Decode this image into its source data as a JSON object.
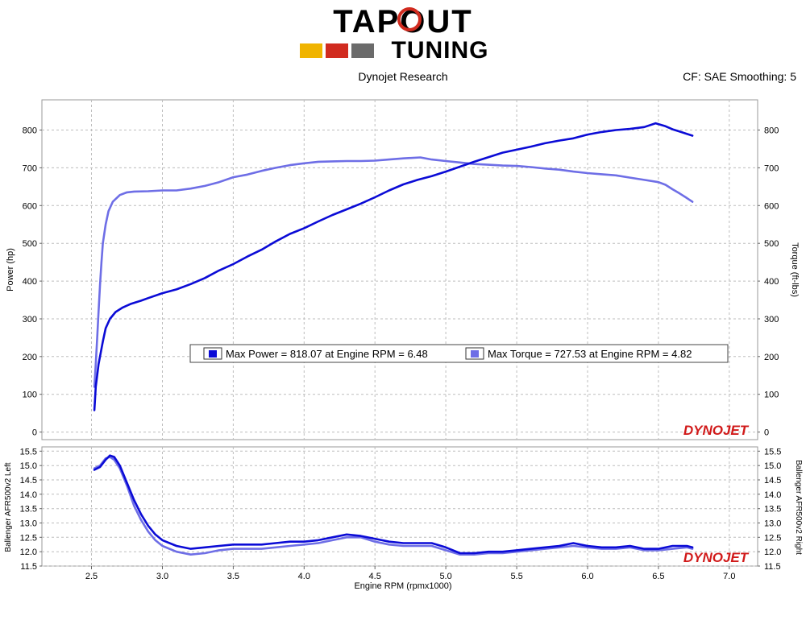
{
  "header": {
    "logo_line1": "TAPOUT",
    "logo_line2": "TUNING",
    "logo_colors": [
      "#f0b400",
      "#d12b1f",
      "#6b6b6b"
    ],
    "subtitle": "Dynojet Research",
    "cf_label": "CF: SAE Smoothing: 5"
  },
  "watermark": "DYNOJET",
  "chart_data": [
    {
      "type": "line",
      "grid": true,
      "xlim": [
        2.15,
        7.2
      ],
      "xticks": [
        2.5,
        3.0,
        3.5,
        4.0,
        4.5,
        5.0,
        5.5,
        6.0,
        6.5,
        7.0
      ],
      "ylim": [
        -20,
        880
      ],
      "yticks": [
        0,
        100,
        200,
        300,
        400,
        500,
        600,
        700,
        800
      ],
      "ylabel": "Power (hp)",
      "y2label": "Torque (ft-lbs)",
      "legend": {
        "placement": "center-right",
        "entries": [
          {
            "text": "Max Power = 818.07 at Engine RPM = 6.48",
            "color": "#0b0bd6"
          },
          {
            "text": "Max Torque = 727.53 at Engine RPM = 4.82",
            "color": "#6e6ee6"
          }
        ]
      },
      "series": [
        {
          "key": "power",
          "color": "#0b0bd6",
          "x": [
            2.52,
            2.53,
            2.55,
            2.58,
            2.6,
            2.63,
            2.67,
            2.72,
            2.78,
            2.85,
            2.9,
            3.0,
            3.1,
            3.2,
            3.3,
            3.4,
            3.5,
            3.6,
            3.7,
            3.8,
            3.9,
            4.0,
            4.1,
            4.2,
            4.3,
            4.4,
            4.5,
            4.6,
            4.7,
            4.8,
            4.9,
            5.0,
            5.1,
            5.2,
            5.3,
            5.4,
            5.5,
            5.6,
            5.7,
            5.8,
            5.9,
            6.0,
            6.1,
            6.2,
            6.3,
            6.4,
            6.48,
            6.55,
            6.6,
            6.65,
            6.7,
            6.74
          ],
          "y": [
            58,
            120,
            180,
            240,
            275,
            300,
            318,
            330,
            340,
            348,
            355,
            368,
            378,
            392,
            408,
            428,
            445,
            465,
            483,
            505,
            525,
            540,
            558,
            575,
            590,
            605,
            622,
            640,
            656,
            668,
            678,
            690,
            703,
            716,
            728,
            740,
            748,
            756,
            765,
            772,
            778,
            788,
            795,
            800,
            803,
            808,
            818,
            810,
            802,
            796,
            790,
            785
          ]
        },
        {
          "key": "torque",
          "color": "#6e6ee6",
          "x": [
            2.52,
            2.53,
            2.54,
            2.55,
            2.56,
            2.57,
            2.58,
            2.6,
            2.62,
            2.65,
            2.7,
            2.75,
            2.8,
            2.9,
            3.0,
            3.1,
            3.2,
            3.3,
            3.4,
            3.5,
            3.6,
            3.7,
            3.8,
            3.9,
            4.0,
            4.1,
            4.2,
            4.3,
            4.4,
            4.5,
            4.6,
            4.7,
            4.82,
            4.9,
            5.0,
            5.1,
            5.2,
            5.3,
            5.4,
            5.5,
            5.6,
            5.7,
            5.8,
            5.9,
            6.0,
            6.1,
            6.2,
            6.3,
            6.4,
            6.5,
            6.55,
            6.6,
            6.65,
            6.7,
            6.74
          ],
          "y": [
            120,
            180,
            250,
            320,
            390,
            450,
            500,
            550,
            585,
            610,
            628,
            635,
            637,
            638,
            640,
            640,
            645,
            652,
            662,
            675,
            682,
            692,
            700,
            707,
            712,
            716,
            717,
            718,
            718,
            719,
            722,
            725,
            727.5,
            722,
            718,
            714,
            710,
            708,
            706,
            705,
            702,
            698,
            695,
            690,
            686,
            683,
            680,
            674,
            668,
            662,
            655,
            643,
            632,
            620,
            610
          ]
        }
      ]
    },
    {
      "type": "line",
      "grid": true,
      "xlim": [
        2.15,
        7.2
      ],
      "xticks": [
        2.5,
        3.0,
        3.5,
        4.0,
        4.5,
        5.0,
        5.5,
        6.0,
        6.5,
        7.0
      ],
      "xlabel": "Engine RPM (rpmx1000)",
      "ylim": [
        11.5,
        15.65
      ],
      "yticks": [
        11.5,
        12.0,
        12.5,
        13.0,
        13.5,
        14.0,
        14.5,
        15.0,
        15.5
      ],
      "ylabel": "Ballenger AFR500v2 Left",
      "y2label": "Ballenger AFR500v2 Right",
      "series": [
        {
          "key": "afr_left",
          "color": "#0b0bd6",
          "x": [
            2.52,
            2.56,
            2.6,
            2.63,
            2.66,
            2.7,
            2.75,
            2.8,
            2.85,
            2.9,
            2.95,
            3.0,
            3.1,
            3.2,
            3.3,
            3.4,
            3.5,
            3.6,
            3.7,
            3.8,
            3.9,
            4.0,
            4.1,
            4.2,
            4.3,
            4.4,
            4.5,
            4.6,
            4.7,
            4.8,
            4.9,
            5.0,
            5.1,
            5.2,
            5.3,
            5.4,
            5.5,
            5.6,
            5.7,
            5.8,
            5.9,
            6.0,
            6.1,
            6.2,
            6.3,
            6.4,
            6.5,
            6.6,
            6.7,
            6.74
          ],
          "y": [
            14.85,
            14.95,
            15.2,
            15.35,
            15.3,
            15.0,
            14.4,
            13.8,
            13.3,
            12.9,
            12.6,
            12.4,
            12.2,
            12.1,
            12.15,
            12.2,
            12.25,
            12.25,
            12.25,
            12.3,
            12.35,
            12.35,
            12.4,
            12.5,
            12.6,
            12.55,
            12.45,
            12.35,
            12.3,
            12.3,
            12.3,
            12.15,
            11.95,
            11.95,
            12.0,
            12.0,
            12.05,
            12.1,
            12.15,
            12.2,
            12.3,
            12.2,
            12.15,
            12.15,
            12.2,
            12.1,
            12.1,
            12.2,
            12.2,
            12.15
          ]
        },
        {
          "key": "afr_right",
          "color": "#6e6ee6",
          "x": [
            2.52,
            2.56,
            2.6,
            2.63,
            2.66,
            2.7,
            2.75,
            2.8,
            2.85,
            2.9,
            2.95,
            3.0,
            3.1,
            3.2,
            3.3,
            3.4,
            3.5,
            3.6,
            3.7,
            3.8,
            3.9,
            4.0,
            4.1,
            4.2,
            4.3,
            4.4,
            4.5,
            4.6,
            4.7,
            4.8,
            4.9,
            5.0,
            5.1,
            5.2,
            5.3,
            5.4,
            5.5,
            5.6,
            5.7,
            5.8,
            5.9,
            6.0,
            6.1,
            6.2,
            6.3,
            6.4,
            6.5,
            6.6,
            6.7,
            6.74
          ],
          "y": [
            14.9,
            15.0,
            15.25,
            15.3,
            15.2,
            14.9,
            14.3,
            13.6,
            13.1,
            12.7,
            12.4,
            12.2,
            12.0,
            11.9,
            11.95,
            12.05,
            12.1,
            12.1,
            12.1,
            12.15,
            12.2,
            12.25,
            12.3,
            12.4,
            12.5,
            12.5,
            12.35,
            12.25,
            12.2,
            12.2,
            12.2,
            12.05,
            11.9,
            11.9,
            11.95,
            11.95,
            12.0,
            12.05,
            12.1,
            12.15,
            12.2,
            12.15,
            12.1,
            12.1,
            12.15,
            12.05,
            12.05,
            12.1,
            12.15,
            12.1
          ]
        }
      ]
    }
  ]
}
